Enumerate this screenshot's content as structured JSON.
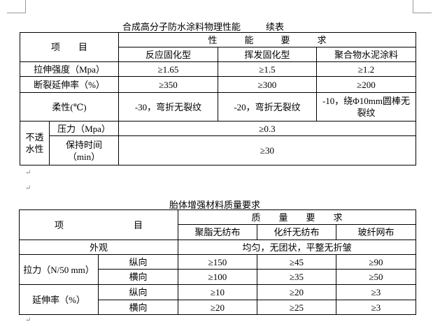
{
  "table1": {
    "title": "合成高分子防水涂料物理性能",
    "title_suffix": "续表",
    "item_header": "项　　目",
    "req_header": "性　　　能　　　要　　　求",
    "types": [
      "反应固化型",
      "挥发固化型",
      "聚合物水泥涂料"
    ],
    "rows": [
      {
        "label": "拉伸强度（Mpa）",
        "values": [
          "≥1.65",
          "≥1.5",
          "≥1.2"
        ]
      },
      {
        "label": "断裂延伸率（%）",
        "values": [
          "≥350",
          "≥300",
          "≥200"
        ]
      },
      {
        "label": "柔性(℃)",
        "values": [
          "-30，弯折无裂纹",
          "-20，弯折无裂纹",
          "-10，绕Φ10mm圆棒无裂纹"
        ]
      }
    ],
    "impermeability": {
      "label": "不透水性",
      "pressure_label": "压力（Mpa）",
      "pressure_value": "≥0.3",
      "time_label": "保持时间（min）",
      "time_value": "≥30"
    }
  },
  "table2": {
    "title": "胎体增强材料质量要求",
    "item_header_left": "项",
    "item_header_right": "目",
    "req_header": "质　　量　　要　　求",
    "types": [
      "聚脂无纺布",
      "化纤无纺布",
      "玻纤网布"
    ],
    "appearance_label": "外观",
    "appearance_value": "均匀，无团状，平整无折皱",
    "tension": {
      "label": "拉力（N/50 mm）",
      "rows": [
        {
          "dir": "纵向",
          "values": [
            "≥150",
            "≥45",
            "≥90"
          ]
        },
        {
          "dir": "横向",
          "values": [
            "≥100",
            "≥35",
            "≥50"
          ]
        }
      ]
    },
    "elongation": {
      "label": "延伸率（%）",
      "rows": [
        {
          "dir": "纵向",
          "values": [
            "≥10",
            "≥20",
            "≥3"
          ]
        },
        {
          "dir": "横向",
          "values": [
            "≥20",
            "≥25",
            "≥3"
          ]
        }
      ]
    }
  }
}
